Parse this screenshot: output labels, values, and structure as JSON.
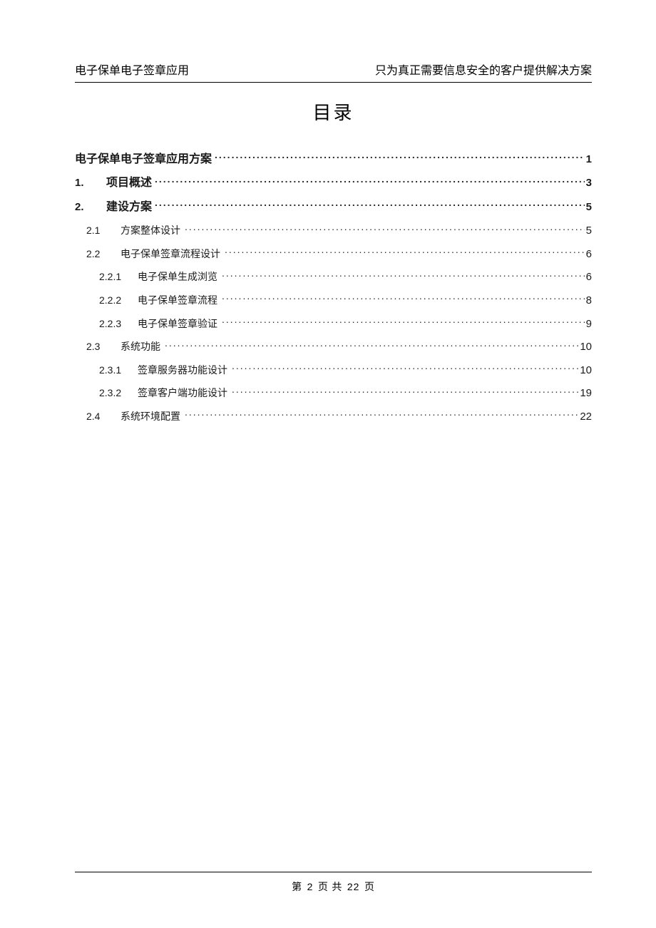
{
  "header": {
    "left": "电子保单电子签章应用",
    "right": "只为真正需要信息安全的客户提供解决方案"
  },
  "toc_title": "目录",
  "toc_entries": [
    {
      "level": 0,
      "num": "",
      "label": "电子保单电子签章应用方案",
      "page": "1"
    },
    {
      "level": 1,
      "num": "1.",
      "label": "项目概述",
      "page": "3"
    },
    {
      "level": 1,
      "num": "2.",
      "label": "建设方案",
      "page": "5"
    },
    {
      "level": 2,
      "num": "2.1",
      "label": "方案整体设计",
      "page": "5"
    },
    {
      "level": 2,
      "num": "2.2",
      "label": "电子保单签章流程设计",
      "page": "6"
    },
    {
      "level": 3,
      "num": "2.2.1",
      "label": "电子保单生成浏览",
      "page": "6"
    },
    {
      "level": 3,
      "num": "2.2.2",
      "label": "电子保单签章流程",
      "page": "8"
    },
    {
      "level": 3,
      "num": "2.2.3",
      "label": "电子保单签章验证",
      "page": "9"
    },
    {
      "level": 2,
      "num": "2.3",
      "label": "系统功能",
      "page": "10"
    },
    {
      "level": 3,
      "num": "2.3.1",
      "label": "签章服务器功能设计",
      "page": "10"
    },
    {
      "level": 3,
      "num": "2.3.2",
      "label": "签章客户端功能设计",
      "page": "19"
    },
    {
      "level": 2,
      "num": "2.4",
      "label": "系统环境配置",
      "page": "22"
    }
  ],
  "footer": {
    "prefix": "第",
    "current": "2",
    "mid": "页 共",
    "total": "22",
    "suffix": "页"
  }
}
